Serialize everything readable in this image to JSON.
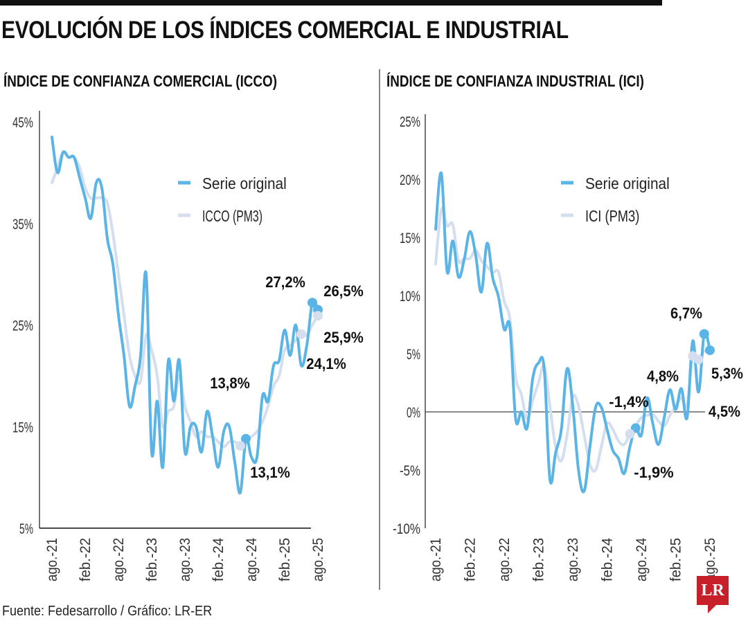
{
  "title": "EVOLUCIÓN DE LOS ÍNDICES COMERCIAL E INDUSTRIAL",
  "source": "Fuente: Fedesarrollo / Gráfico: LR-ER",
  "logo": "LR",
  "colors": {
    "original": "#5ab4e5",
    "pm3": "#d4deef",
    "axis": "#333333",
    "logo": "#c8202b"
  },
  "chart_data": [
    {
      "type": "line",
      "title": "ÍNDICE DE CONFIANZA COMERCIAL (ICCO)",
      "ylim": [
        5,
        45
      ],
      "yticks": [
        "45%",
        "35%",
        "25%",
        "15%",
        "5%"
      ],
      "ytick_values": [
        45,
        35,
        25,
        15,
        5
      ],
      "xticks": [
        "ago.-21",
        "feb.-22",
        "ago.-22",
        "feb.-23",
        "ago.-23",
        "feb.-24",
        "ago.-24",
        "feb.-25",
        "ago.-25"
      ],
      "x_range": [
        "ago.-21",
        "ago.-25"
      ],
      "frequency": "monthly",
      "legend_position": "top-right",
      "series": [
        {
          "name": "Serie original",
          "values": [
            43.5,
            40,
            42,
            41.5,
            41.5,
            39.5,
            37.5,
            35.5,
            39,
            38.5,
            33.5,
            31,
            26,
            22,
            17,
            19,
            22,
            30,
            12.5,
            17.5,
            11,
            21.5,
            17.5,
            21.5,
            12.5,
            15,
            15,
            12.5,
            16.5,
            14,
            11,
            14.5,
            15,
            11.5,
            8.5,
            13.8,
            12,
            12,
            18,
            17.5,
            21,
            21.5,
            24.5,
            22,
            25,
            21,
            23,
            27.2,
            26.5
          ]
        },
        {
          "name": "ICCO (PM3)",
          "values": [
            39,
            40.5,
            42,
            41.5,
            41.5,
            40.5,
            38.5,
            37.5,
            37.5,
            37.5,
            37,
            34,
            30,
            26,
            22,
            20,
            19.5,
            24,
            22.5,
            20,
            15,
            16.5,
            17,
            20,
            17,
            15.5,
            14,
            14.5,
            14,
            14,
            13.5,
            13,
            13.5,
            13.5,
            13.1,
            13.5,
            14,
            14.5,
            15.5,
            17,
            19,
            20,
            22.5,
            23,
            23.5,
            24.1,
            24,
            25,
            25.9
          ]
        }
      ],
      "annotations": [
        {
          "series": 0,
          "index": 35,
          "text": "13,8%"
        },
        {
          "series": 1,
          "index": 34,
          "text": "13,1%"
        },
        {
          "series": 0,
          "index": 47,
          "text": "27,2%"
        },
        {
          "series": 0,
          "index": 48,
          "text": "26,5%"
        },
        {
          "series": 1,
          "index": 48,
          "text": "25,9%"
        },
        {
          "series": 1,
          "index": 45,
          "text": "24,1%"
        }
      ]
    },
    {
      "type": "line",
      "title": "ÍNDICE DE CONFIANZA INDUSTRIAL (ICI)",
      "ylim": [
        -10,
        25
      ],
      "yticks": [
        "25%",
        "20%",
        "15%",
        "10%",
        "5%",
        "0%",
        "-5%",
        "-10%"
      ],
      "ytick_values": [
        25,
        20,
        15,
        10,
        5,
        0,
        -5,
        -10
      ],
      "xticks": [
        "ago.-21",
        "feb.-22",
        "ago.-22",
        "feb.-23",
        "ago.-23",
        "feb.-24",
        "ago.-24",
        "feb.-25",
        "ago.-25"
      ],
      "x_range": [
        "ago.-21",
        "ago.-25"
      ],
      "frequency": "monthly",
      "legend_position": "top-right",
      "series": [
        {
          "name": "Serie original",
          "values": [
            15.7,
            20.5,
            12.1,
            14.7,
            11.6,
            13.1,
            15.5,
            13.5,
            10.3,
            14.5,
            11.5,
            9.9,
            7.1,
            7.3,
            -0.6,
            0,
            -1.4,
            2.9,
            4.2,
            3.7,
            -5.8,
            -3.5,
            -1.5,
            3.7,
            0.5,
            -5,
            -6.8,
            -3,
            0.4,
            0.4,
            -1.5,
            -3.3,
            -4,
            -5.3,
            -3,
            -1.4,
            -2,
            1.2,
            -1,
            -2.8,
            -0.5,
            1.9,
            0.2,
            2,
            -0.5,
            6.1,
            1.7,
            6.7,
            5.3
          ]
        },
        {
          "name": "ICI (PM3)",
          "values": [
            12.7,
            17.4,
            16,
            16.1,
            13,
            13.2,
            13.2,
            13.9,
            13,
            12.5,
            12,
            12,
            9.5,
            8,
            3,
            1.5,
            -0.6,
            1,
            2.5,
            3.9,
            0.5,
            -3,
            -4.2,
            -2,
            1.3,
            0.5,
            -2,
            -4.5,
            -5,
            -3,
            -1,
            -1.5,
            -2.5,
            -2.8,
            -1.9,
            -1.2,
            -0.5,
            -0.3,
            -0.2,
            -0.8,
            -1.2,
            -0.3,
            0.5,
            1.2,
            0.6,
            4.8,
            4.5,
            5.2,
            5
          ]
        }
      ],
      "annotations": [
        {
          "series": 0,
          "index": 35,
          "text": "-1,4%"
        },
        {
          "series": 1,
          "index": 34,
          "text": "-1,9%"
        },
        {
          "series": 1,
          "index": 45,
          "text": "4,8%"
        },
        {
          "series": 1,
          "index": 46,
          "text": "4,5%"
        },
        {
          "series": 0,
          "index": 47,
          "text": "6,7%"
        },
        {
          "series": 0,
          "index": 48,
          "text": "5,3%"
        }
      ]
    }
  ]
}
